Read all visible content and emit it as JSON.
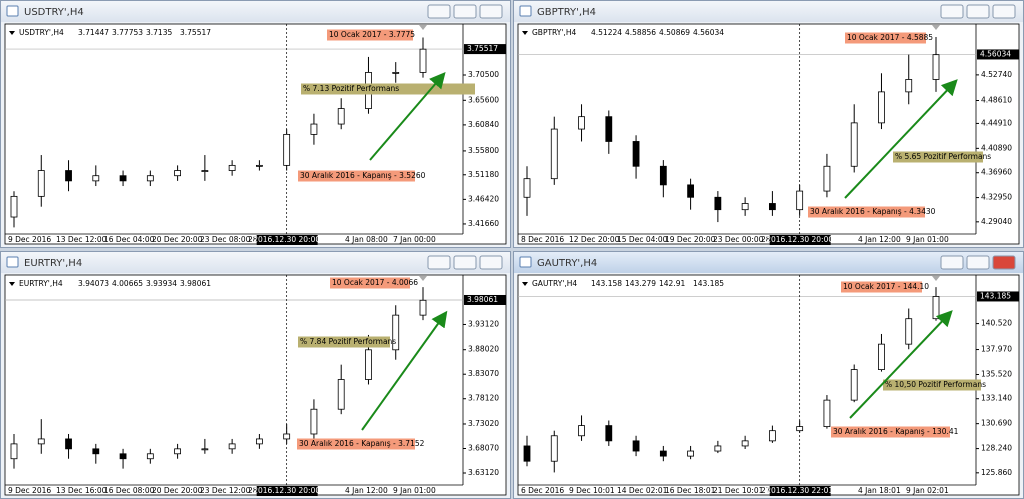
{
  "chart_data": [
    {
      "type": "candlestick",
      "window_title": "USDTRY',H4",
      "ohlc_header": [
        3.71447,
        3.77753,
        3.7135,
        3.75517
      ],
      "open": [
        3.43,
        3.47,
        3.52,
        3.5,
        3.51,
        3.5,
        3.51,
        3.52,
        3.52,
        3.53,
        3.53,
        3.59,
        3.61,
        3.64,
        3.71,
        3.71
      ],
      "high": [
        3.48,
        3.55,
        3.54,
        3.53,
        3.52,
        3.52,
        3.53,
        3.55,
        3.54,
        3.54,
        3.6,
        3.63,
        3.66,
        3.74,
        3.73,
        3.7775
      ],
      "low": [
        3.41,
        3.45,
        3.48,
        3.49,
        3.49,
        3.49,
        3.5,
        3.5,
        3.51,
        3.52,
        3.52,
        3.57,
        3.6,
        3.63,
        3.69,
        3.7
      ],
      "close": [
        3.47,
        3.52,
        3.5,
        3.51,
        3.5,
        3.51,
        3.52,
        3.52,
        3.53,
        3.53,
        3.59,
        3.61,
        3.64,
        3.71,
        3.71,
        3.755
      ],
      "ylim": [
        3.401,
        3.796
      ],
      "yticks": [
        {
          "value": 3.705,
          "label": "3.70500"
        },
        {
          "value": 3.656,
          "label": "3.65600"
        },
        {
          "value": 3.6084,
          "label": "3.60840"
        },
        {
          "value": 3.558,
          "label": "3.55800"
        },
        {
          "value": 3.5118,
          "label": "3.51180"
        },
        {
          "value": 3.4642,
          "label": "3.46420"
        },
        {
          "value": 3.4166,
          "label": "3.41660"
        }
      ],
      "x_labels": [
        "9 Dec 2016",
        "13 Dec 12:00",
        "16 Dec 04:00",
        "20 Dec 20:00",
        "23 Dec 08:00",
        "28 Dec 00:00",
        "4 Jan 08:00",
        "7 Jan 00:00"
      ],
      "crosshair_time": "2016.12.30 20:00",
      "annotations": {
        "peak": "10 Ocak 2017 - 3.7775",
        "performance": "% 7.13 Pozitif Performans",
        "close": "30 Aralık 2016 - Kapanış - 3.5260"
      }
    },
    {
      "type": "candlestick",
      "window_title": "GBPTRY',H4",
      "ohlc_header": [
        4.51224,
        4.58856,
        4.50869,
        4.56034
      ],
      "open": [
        4.33,
        4.36,
        4.44,
        4.46,
        4.42,
        4.38,
        4.35,
        4.33,
        4.31,
        4.32,
        4.31,
        4.34,
        4.38,
        4.45,
        4.5,
        4.52
      ],
      "high": [
        4.38,
        4.46,
        4.48,
        4.47,
        4.43,
        4.39,
        4.36,
        4.34,
        4.33,
        4.34,
        4.35,
        4.4,
        4.48,
        4.53,
        4.56,
        4.5885
      ],
      "low": [
        4.3,
        4.35,
        4.42,
        4.4,
        4.36,
        4.33,
        4.31,
        4.29,
        4.3,
        4.3,
        4.3,
        4.33,
        4.37,
        4.44,
        4.48,
        4.5
      ],
      "close": [
        4.36,
        4.44,
        4.46,
        4.42,
        4.38,
        4.35,
        4.33,
        4.31,
        4.32,
        4.31,
        4.34,
        4.38,
        4.45,
        4.5,
        4.52,
        4.56
      ],
      "ylim": [
        4.274,
        4.603
      ],
      "yticks": [
        {
          "value": 4.5274,
          "label": "4.52740"
        },
        {
          "value": 4.4861,
          "label": "4.48610"
        },
        {
          "value": 4.4491,
          "label": "4.44910"
        },
        {
          "value": 4.4089,
          "label": "4.40890"
        },
        {
          "value": 4.3696,
          "label": "4.36960"
        },
        {
          "value": 4.3295,
          "label": "4.32950"
        },
        {
          "value": 4.2904,
          "label": "4.29040"
        }
      ],
      "x_labels": [
        "8 Dec 2016",
        "12 Dec 20:00",
        "15 Dec 04:00",
        "19 Dec 20:00",
        "23 Dec 00:00",
        "28 Dec 04:00",
        "4 Jan 12:00",
        "9 Jan 01:00"
      ],
      "crosshair_time": "2016.12.30 20:00",
      "annotations": {
        "peak": "10 Ocak 2017 - 4.5885",
        "performance": "% 5.65 Pozitif Performans",
        "close": "30 Aralık 2016 - Kapanış - 4.3430"
      }
    },
    {
      "type": "candlestick",
      "window_title": "EURTRY',H4",
      "ohlc_header": [
        3.94073,
        4.00665,
        3.93934,
        3.98061
      ],
      "open": [
        3.66,
        3.69,
        3.7,
        3.68,
        3.67,
        3.66,
        3.67,
        3.68,
        3.68,
        3.69,
        3.7,
        3.71,
        3.76,
        3.82,
        3.88,
        3.95
      ],
      "high": [
        3.71,
        3.74,
        3.71,
        3.69,
        3.68,
        3.68,
        3.69,
        3.7,
        3.7,
        3.71,
        3.73,
        3.78,
        3.85,
        3.91,
        3.97,
        4.0066
      ],
      "low": [
        3.64,
        3.67,
        3.66,
        3.65,
        3.64,
        3.65,
        3.66,
        3.67,
        3.67,
        3.68,
        3.69,
        3.7,
        3.75,
        3.81,
        3.86,
        3.94
      ],
      "close": [
        3.69,
        3.7,
        3.68,
        3.67,
        3.66,
        3.67,
        3.68,
        3.68,
        3.69,
        3.7,
        3.71,
        3.76,
        3.82,
        3.88,
        3.95,
        3.98
      ],
      "ylim": [
        3.611,
        4.023
      ],
      "yticks": [
        {
          "value": 3.9312,
          "label": "3.93120"
        },
        {
          "value": 3.8802,
          "label": "3.88020"
        },
        {
          "value": 3.8307,
          "label": "3.83070"
        },
        {
          "value": 3.7812,
          "label": "3.78120"
        },
        {
          "value": 3.7302,
          "label": "3.73020"
        },
        {
          "value": 3.6807,
          "label": "3.68070"
        },
        {
          "value": 3.6312,
          "label": "3.63120"
        }
      ],
      "x_labels": [
        "9 Dec 2016",
        "13 Dec 16:00",
        "16 Dec 08:00",
        "20 Dec 20:00",
        "23 Dec 12:00",
        "28 Dec 08:00",
        "4 Jan 12:00",
        "9 Jan 01:00"
      ],
      "crosshair_time": "2016.12.30 20:00",
      "annotations": {
        "peak": "10 Ocak 2017 - 4.0066",
        "performance": "% 7.84 Pozitif Performans",
        "close": "30 Aralık 2016 - Kapanış - 3.7152"
      }
    },
    {
      "type": "candlestick",
      "window_title": "GAUTRY',H4",
      "ohlc_header": [
        143.158,
        143.279,
        142.91,
        143.185
      ],
      "open": [
        128.5,
        127.0,
        129.5,
        130.5,
        129.0,
        128.0,
        127.5,
        128.0,
        128.5,
        129.0,
        130.0,
        130.4,
        133.0,
        136.0,
        138.5,
        141.0
      ],
      "high": [
        129.5,
        130.0,
        131.5,
        131.0,
        129.5,
        128.5,
        128.5,
        129.0,
        129.5,
        130.5,
        131.0,
        133.5,
        136.5,
        139.5,
        142.0,
        144.1
      ],
      "low": [
        126.5,
        125.9,
        129.0,
        128.5,
        127.5,
        127.0,
        127.2,
        127.8,
        128.2,
        128.8,
        129.8,
        130.2,
        132.8,
        135.8,
        138.0,
        140.8
      ],
      "close": [
        127.0,
        129.5,
        130.5,
        129.0,
        128.0,
        127.5,
        128.0,
        128.5,
        129.0,
        130.0,
        130.4,
        133.0,
        136.0,
        138.5,
        141.0,
        143.185
      ],
      "ylim": [
        124.86,
        144.9
      ],
      "yticks": [
        {
          "value": 140.52,
          "label": "140.520"
        },
        {
          "value": 137.97,
          "label": "137.970"
        },
        {
          "value": 135.52,
          "label": "135.520"
        },
        {
          "value": 133.14,
          "label": "133.140"
        },
        {
          "value": 130.69,
          "label": "130.690"
        },
        {
          "value": 128.24,
          "label": "128.240"
        },
        {
          "value": 125.86,
          "label": "125.860"
        }
      ],
      "x_labels": [
        "6 Dec 2016",
        "9 Dec 10:01",
        "14 Dec 02:01",
        "16 Dec 18:01",
        "21 Dec 10:01",
        "27 Dec 02:01",
        "4 Jan 18:01",
        "9 Jan 02:01"
      ],
      "crosshair_time": "2016.12.30 22:01",
      "annotations": {
        "peak": "10 Ocak 2017 - 144.10",
        "performance": "% 10,50 Pozitif Performans",
        "close": "30 Aralık 2016 - Kapanış - 130.41"
      }
    }
  ]
}
